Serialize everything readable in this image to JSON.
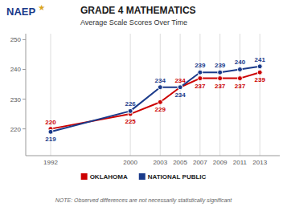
{
  "chart_data": {
    "type": "line",
    "title": "GRADE 4 MATHEMATICS",
    "subtitle": "Average Scale Scores Over Time",
    "annotations": [
      "NAEP",
      "★",
      "NOTE: Observed differences are not necessarily statistically significant"
    ],
    "x": [
      1992,
      2000,
      2003,
      2005,
      2007,
      2009,
      2011,
      2013
    ],
    "series": [
      {
        "name": "OKLAHOMA",
        "color": "#cc0000",
        "values": [
          220,
          225,
          229,
          234,
          237,
          237,
          237,
          239
        ]
      },
      {
        "name": "NATIONAL PUBLIC",
        "color": "#1a3a8a",
        "values": [
          219,
          226,
          234,
          234,
          239,
          239,
          240,
          241
        ]
      }
    ],
    "xlim": [
      1989.5,
      2015.0
    ],
    "xticks": [
      1992,
      2000,
      2003,
      2005,
      2007,
      2009,
      2011,
      2013
    ],
    "ylim": [
      211,
      252
    ],
    "yticks": [
      220,
      230,
      240,
      250
    ],
    "grid": "x",
    "legend": "bottom",
    "marker": "circle",
    "data_labels": true
  }
}
